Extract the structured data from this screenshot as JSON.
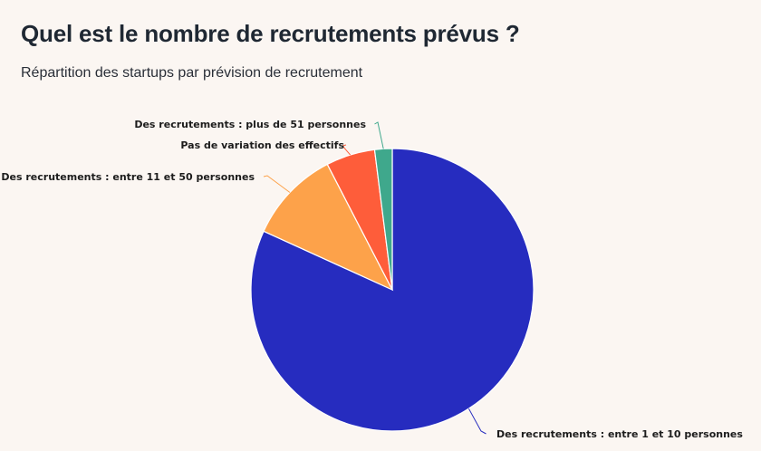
{
  "header": {
    "title": "Quel est le nombre de recrutements prévus ?",
    "subtitle": "Répartition des startups par prévision de recrutement"
  },
  "chart_data": {
    "type": "pie",
    "title": "Quel est le nombre de recrutements prévus ?",
    "subtitle": "Répartition des startups par prévision de recrutement",
    "start_angle_deg": 0,
    "direction": "clockwise",
    "slices": [
      {
        "label": "Des recrutements : entre 1 et 10 personnes",
        "value": 81.8,
        "color": "#262cbf"
      },
      {
        "label": "Des recrutements : entre 11 et 50 personnes",
        "value": 10.6,
        "color": "#fda24a"
      },
      {
        "label": "Pas de variation des effectifs",
        "value": 5.6,
        "color": "#fe5d3a"
      },
      {
        "label": "Des recrutements : plus de 51 personnes",
        "value": 2.0,
        "color": "#3fa88c"
      }
    ]
  }
}
